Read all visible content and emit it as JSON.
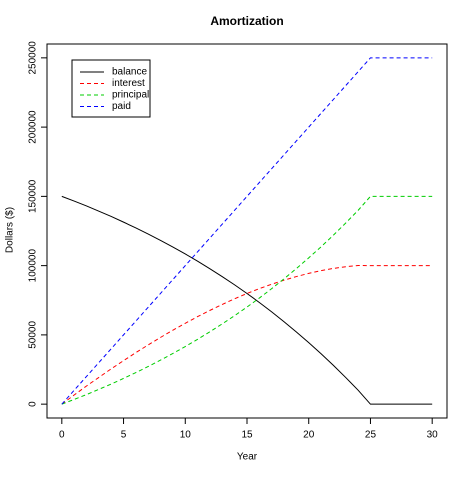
{
  "chart_data": {
    "type": "line",
    "title": "Amortization",
    "x_label": "Year",
    "y_label": "Dollars ($)",
    "x": [
      0,
      1,
      2,
      3,
      4,
      5,
      6,
      7,
      8,
      9,
      10,
      11,
      12,
      13,
      14,
      15,
      16,
      17,
      18,
      19,
      20,
      21,
      22,
      23,
      24,
      25,
      26,
      27,
      28,
      29,
      30
    ],
    "series": [
      {
        "name": "balance",
        "color": "#000000",
        "dash": false,
        "values": [
          150000,
          146600,
          143100,
          139300,
          135500,
          131400,
          127200,
          122800,
          118200,
          113400,
          108400,
          103200,
          97700,
          92000,
          86100,
          79900,
          73400,
          66600,
          59500,
          52100,
          44400,
          36400,
          28000,
          19200,
          10100,
          0,
          0,
          0,
          0,
          0,
          0
        ]
      },
      {
        "name": "interest",
        "color": "#ff0000",
        "dash": true,
        "values": [
          0,
          6600,
          13100,
          19300,
          25500,
          31400,
          37200,
          42800,
          48200,
          53400,
          58400,
          63200,
          67700,
          72000,
          76100,
          79900,
          83400,
          86600,
          89500,
          92100,
          94400,
          96400,
          98000,
          99200,
          100100,
          100000,
          100000,
          100000,
          100000,
          100000,
          100000
        ]
      },
      {
        "name": "principal",
        "color": "#00cd00",
        "dash": true,
        "values": [
          0,
          3400,
          6900,
          10700,
          14500,
          18600,
          22800,
          27200,
          31800,
          36600,
          41600,
          46800,
          52300,
          58000,
          63900,
          70100,
          76600,
          83400,
          90500,
          97900,
          105600,
          113600,
          122000,
          130800,
          139900,
          150000,
          150000,
          150000,
          150000,
          150000,
          150000
        ]
      },
      {
        "name": "paid",
        "color": "#0000ff",
        "dash": true,
        "values": [
          0,
          10000,
          20000,
          30000,
          40000,
          50000,
          60000,
          70000,
          80000,
          90000,
          100000,
          110000,
          120000,
          130000,
          140000,
          150000,
          160000,
          170000,
          180000,
          190000,
          200000,
          210000,
          220000,
          230000,
          240000,
          250000,
          250000,
          250000,
          250000,
          250000,
          250000
        ]
      }
    ],
    "xlim": [
      -1.2,
      31.2
    ],
    "xticks": [
      0,
      5,
      10,
      15,
      20,
      25,
      30
    ],
    "ylim": [
      -10000,
      260000
    ],
    "yticks": [
      0,
      50000,
      100000,
      150000,
      200000,
      250000
    ],
    "legend": "top-left"
  }
}
